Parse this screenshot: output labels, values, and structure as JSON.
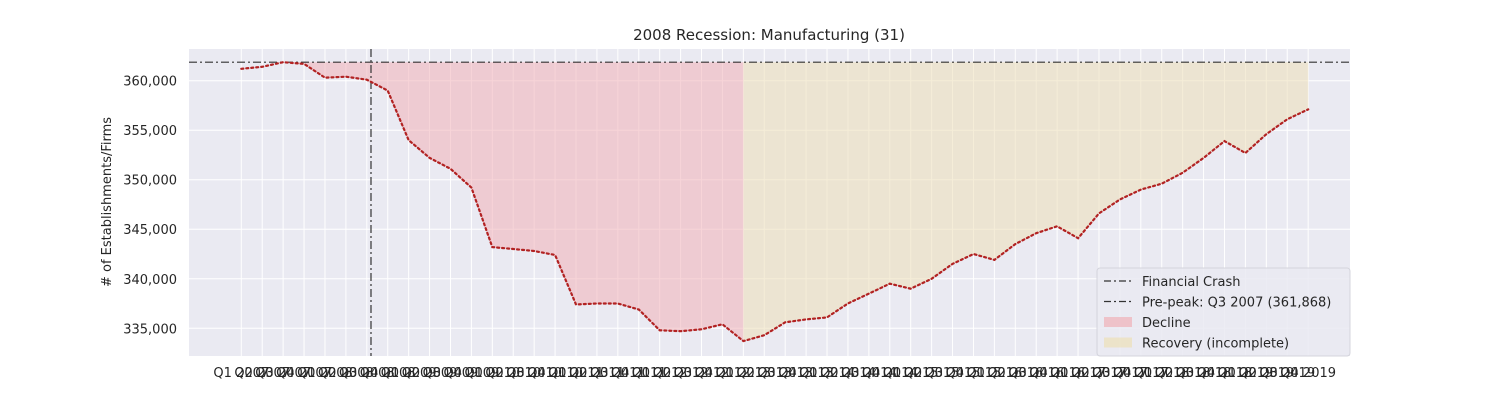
{
  "chart_data": {
    "type": "line",
    "title": "2008 Recession: Manufacturing (31)",
    "xlabel": "",
    "ylabel": "# of Establishments/Firms",
    "ylim": [
      332200,
      363200
    ],
    "yticks": [
      335000,
      340000,
      345000,
      350000,
      355000,
      360000
    ],
    "ytick_labels": [
      "335,000",
      "340,000",
      "345,000",
      "350,000",
      "355,000",
      "360,000"
    ],
    "grid": true,
    "legend_position": "lower-right",
    "categories": [
      "Q1 2007",
      "Q2 2007",
      "Q3 2007",
      "Q4 2007",
      "Q1 2008",
      "Q2 2008",
      "Q3 2008",
      "Q4 2008",
      "Q1 2009",
      "Q2 2009",
      "Q3 2009",
      "Q4 2009",
      "Q1 2010",
      "Q2 2010",
      "Q3 2010",
      "Q4 2010",
      "Q1 2011",
      "Q2 2011",
      "Q3 2011",
      "Q4 2011",
      "Q1 2012",
      "Q2 2012",
      "Q3 2012",
      "Q4 2012",
      "Q1 2013",
      "Q2 2013",
      "Q3 2013",
      "Q4 2013",
      "Q1 2014",
      "Q2 2014",
      "Q3 2014",
      "Q4 2014",
      "Q1 2015",
      "Q2 2015",
      "Q3 2015",
      "Q4 2015",
      "Q1 2016",
      "Q2 2016",
      "Q3 2016",
      "Q4 2016",
      "Q1 2017",
      "Q2 2017",
      "Q3 2017",
      "Q4 2017",
      "Q1 2018",
      "Q2 2018",
      "Q3 2018",
      "Q4 2018",
      "Q1 2019",
      "Q2 2019",
      "Q3 2019",
      "Q4 2019"
    ],
    "xtick_labels": [
      "Q1 2007",
      "Q2 2007",
      "Q3 2007",
      "Q4 2007",
      "Q1 2008",
      "Q2 2008",
      "Q3 2008",
      "Q4 2008",
      "Q1 2009",
      "Q2 2009",
      "Q3 2009",
      "Q4 2009",
      "Q1 2010",
      "Q2 2010",
      "Q3 2010",
      "Q4 2010",
      "Q1 2011",
      "Q2 2011",
      "Q3 2011",
      "Q4 2011",
      "Q1 2012",
      "Q2 2012",
      "Q3 2012",
      "Q4 2012",
      "Q1 2013",
      "Q2 2013",
      "Q3 2013",
      "Q4 2013",
      "Q1 2014",
      "Q2 2014",
      "Q3 2014",
      "Q4 2014",
      "Q1 2015",
      "Q2 2015",
      "Q3 2015",
      "Q4 2015",
      "Q1 2016",
      "Q2 2016",
      "Q3 2016",
      "Q4 2016",
      "Q1 2017",
      "Q2 2017",
      "Q3 2017",
      "Q4 2017",
      "Q1 2018",
      "Q2 2018",
      "Q3 2018",
      "Q4 2018",
      "Q1 2019",
      "Q2 2019",
      "Q3 2019",
      "Q4 2019"
    ],
    "x_range": [
      -2.5,
      53
    ],
    "series": [
      {
        "name": "",
        "color": "#b22222",
        "style": "dotted",
        "x_start": 0,
        "values": [
          361200,
          361400,
          361868,
          361700,
          360300,
          360400,
          360100,
          359000,
          354000,
          352200,
          351100,
          349200,
          343200,
          343000,
          342800,
          342400,
          337400,
          337500,
          337500,
          336900,
          334800,
          334700,
          334900,
          335400,
          333700,
          334300,
          335600,
          335900,
          336100,
          337500,
          338500,
          339500,
          339000,
          340000,
          341500,
          342500,
          341900,
          343500,
          344600,
          345300,
          344100,
          346600,
          348000,
          349000,
          349600,
          350700,
          352200,
          353900,
          352700,
          354600,
          356100,
          357100
        ]
      }
    ],
    "reference_lines": {
      "vertical": {
        "name": "Financial Crash",
        "x": 6.2,
        "color": "#333333",
        "style": "dashdot"
      },
      "horizontal": {
        "name": "Pre-peak: Q3 2007 (361,868)",
        "y": 361868,
        "color": "#333333",
        "style": "dashdot"
      }
    },
    "shaded_regions": [
      {
        "name": "Decline",
        "from_index": 2,
        "to_index": 24,
        "color": "#f0b0b8"
      },
      {
        "name": "Recovery (incomplete)",
        "from_index": 24,
        "to_index": 51,
        "color": "#ecdfb8"
      }
    ],
    "legend": [
      {
        "label": "Financial Crash",
        "kind": "line",
        "color": "#333333"
      },
      {
        "label": "Pre-peak: Q3 2007 (361,868)",
        "kind": "line",
        "color": "#333333"
      },
      {
        "label": "Decline",
        "kind": "patch",
        "color": "#f0b0b8"
      },
      {
        "label": "Recovery (incomplete)",
        "kind": "patch",
        "color": "#ecdfb8"
      }
    ],
    "colors": {
      "plot_background": "#eaeaf2",
      "grid": "#ffffff"
    }
  }
}
